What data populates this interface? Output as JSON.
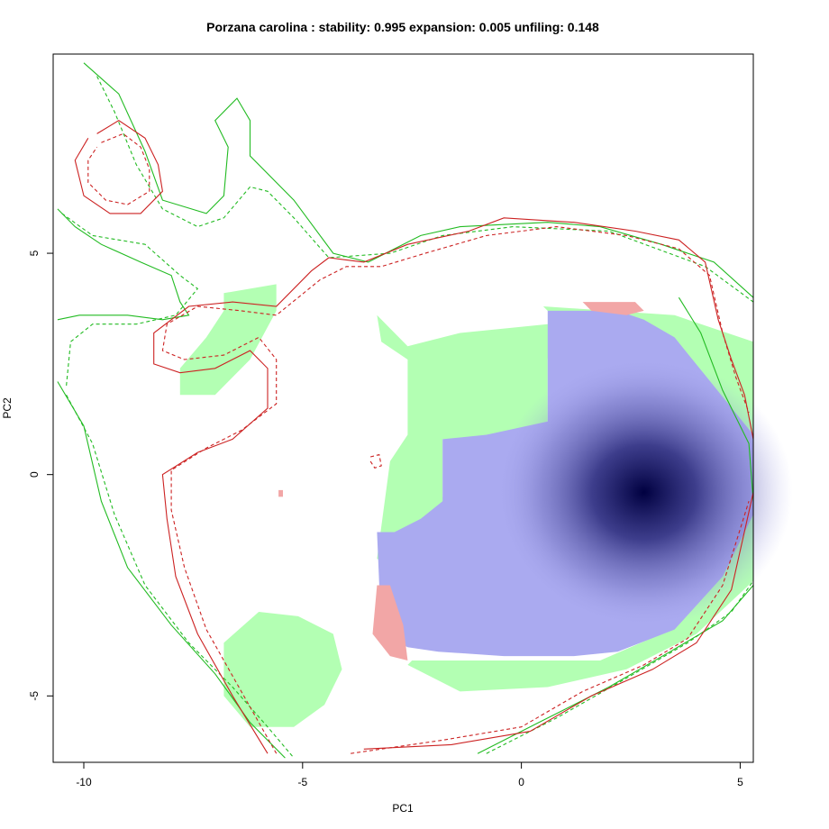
{
  "chart_data": {
    "type": "heatmap",
    "title": "Porzana carolina : stability: 0.995 expansion: 0.005 unfiling: 0.148",
    "xlabel": "PC1",
    "ylabel": "PC2",
    "xlim": [
      -10.7,
      5.3
    ],
    "ylim": [
      -6.5,
      9.5
    ],
    "xticks": [
      -10,
      -5,
      0,
      5
    ],
    "yticks": [
      -5,
      0,
      5
    ],
    "xtick_labels": [
      "-10",
      "-5",
      "0",
      "5"
    ],
    "ytick_labels": [
      "-5",
      "0",
      "5"
    ],
    "colors": {
      "overlap": "#aaaaf0",
      "density_peak": "#000040",
      "native_only": "#b3ffb3",
      "invasive_only": "#f2a6a6",
      "native_contour": "#22bb22",
      "invasive_contour": "#cc2222"
    },
    "density_peak": {
      "x": 2.8,
      "y": -0.4
    },
    "regions": {
      "native_only": [
        [
          [
            0.5,
            3.8
          ],
          [
            3.5,
            3.6
          ],
          [
            5.3,
            3.0
          ],
          [
            5.3,
            0.3
          ],
          [
            4.6,
            1.4
          ],
          [
            3.8,
            2.6
          ],
          [
            2.8,
            3.4
          ],
          [
            1.4,
            3.6
          ],
          [
            0.6,
            3.4
          ],
          [
            -1.4,
            3.2
          ],
          [
            -2.6,
            2.9
          ],
          [
            -3.3,
            3.6
          ],
          [
            -3.2,
            3.0
          ],
          [
            -2.6,
            2.6
          ],
          [
            -2.6,
            0.9
          ],
          [
            -3.0,
            0.3
          ],
          [
            -3.3,
            -1.9
          ],
          [
            -2.4,
            -2.4
          ],
          [
            -1.2,
            -1.6
          ],
          [
            -1.8,
            -0.5
          ],
          [
            -1.8,
            0.8
          ],
          [
            -0.5,
            0.8
          ],
          [
            0.6,
            1.2
          ],
          [
            0.6,
            2.6
          ],
          [
            0.7,
            3.6
          ]
        ],
        [
          [
            -2.6,
            -4.3
          ],
          [
            -1.4,
            -4.9
          ],
          [
            0.6,
            -4.8
          ],
          [
            2.4,
            -4.4
          ],
          [
            4.0,
            -3.6
          ],
          [
            5.3,
            -2.4
          ],
          [
            5.3,
            -0.5
          ],
          [
            4.4,
            -2.2
          ],
          [
            3.2,
            -3.6
          ],
          [
            1.8,
            -4.2
          ],
          [
            -0.4,
            -4.2
          ],
          [
            -2.5,
            -4.2
          ]
        ],
        [
          [
            -6.8,
            4.1
          ],
          [
            -5.6,
            4.3
          ],
          [
            -5.6,
            3.7
          ],
          [
            -6.2,
            2.6
          ],
          [
            -7.0,
            1.8
          ],
          [
            -7.8,
            1.8
          ],
          [
            -7.8,
            2.4
          ],
          [
            -7.2,
            3.1
          ],
          [
            -6.8,
            3.7
          ]
        ],
        [
          [
            -6.0,
            -3.1
          ],
          [
            -5.1,
            -3.2
          ],
          [
            -4.3,
            -3.6
          ],
          [
            -4.1,
            -4.4
          ],
          [
            -4.5,
            -5.2
          ],
          [
            -5.2,
            -5.7
          ],
          [
            -6.2,
            -5.7
          ],
          [
            -6.8,
            -5.0
          ],
          [
            -6.8,
            -3.8
          ]
        ]
      ],
      "overlap": [
        [
          [
            0.6,
            3.7
          ],
          [
            2.2,
            3.7
          ],
          [
            2.8,
            3.5
          ],
          [
            3.5,
            3.1
          ],
          [
            4.4,
            2.0
          ],
          [
            5.3,
            0.9
          ],
          [
            5.3,
            -0.9
          ],
          [
            4.6,
            -2.3
          ],
          [
            3.5,
            -3.5
          ],
          [
            2.2,
            -4.0
          ],
          [
            1.2,
            -4.1
          ],
          [
            -0.4,
            -4.1
          ],
          [
            -1.9,
            -4.0
          ],
          [
            -2.6,
            -3.9
          ],
          [
            -3.2,
            -3.6
          ],
          [
            -3.3,
            -1.3
          ],
          [
            -2.9,
            -1.3
          ],
          [
            -2.3,
            -1.0
          ],
          [
            -1.8,
            -0.6
          ],
          [
            -1.8,
            0.8
          ],
          [
            -0.8,
            0.9
          ],
          [
            0.6,
            1.2
          ],
          [
            0.6,
            2.6
          ]
        ]
      ],
      "invasive_only": [
        [
          [
            1.4,
            3.9
          ],
          [
            2.6,
            3.9
          ],
          [
            2.8,
            3.7
          ],
          [
            2.4,
            3.6
          ],
          [
            1.6,
            3.7
          ]
        ],
        [
          [
            -3.3,
            -2.5
          ],
          [
            -3.0,
            -2.5
          ],
          [
            -2.7,
            -3.4
          ],
          [
            -2.6,
            -4.2
          ],
          [
            -3.0,
            -4.1
          ],
          [
            -3.4,
            -3.6
          ]
        ],
        [
          [
            -5.55,
            -0.5
          ],
          [
            -5.45,
            -0.5
          ],
          [
            -5.45,
            -0.35
          ],
          [
            -5.55,
            -0.35
          ]
        ]
      ]
    },
    "series": [
      {
        "kind": "native",
        "style": "solid",
        "points": [
          [
            -10.6,
            6.0
          ],
          [
            -10.2,
            5.6
          ],
          [
            -9.6,
            5.2
          ],
          [
            -8.7,
            4.8
          ],
          [
            -8.0,
            4.5
          ],
          [
            -7.8,
            3.9
          ],
          [
            -7.6,
            3.6
          ],
          [
            -8.2,
            3.5
          ],
          [
            -9.0,
            3.6
          ],
          [
            -10.1,
            3.6
          ],
          [
            -10.6,
            3.5
          ]
        ]
      },
      {
        "kind": "native",
        "style": "solid",
        "points": [
          [
            -10.0,
            9.3
          ],
          [
            -9.2,
            8.6
          ],
          [
            -8.6,
            7.3
          ],
          [
            -8.2,
            6.2
          ],
          [
            -7.2,
            5.9
          ],
          [
            -6.8,
            6.3
          ],
          [
            -6.7,
            7.4
          ],
          [
            -7.0,
            8.0
          ],
          [
            -6.5,
            8.5
          ],
          [
            -6.2,
            8.0
          ],
          [
            -6.2,
            7.2
          ],
          [
            -5.2,
            6.2
          ],
          [
            -4.3,
            5.0
          ],
          [
            -3.5,
            4.8
          ],
          [
            -2.3,
            5.4
          ],
          [
            -1.4,
            5.6
          ],
          [
            0.6,
            5.7
          ],
          [
            1.8,
            5.6
          ],
          [
            3.2,
            5.2
          ],
          [
            4.4,
            4.8
          ],
          [
            5.3,
            4.0
          ]
        ]
      },
      {
        "kind": "native",
        "style": "solid",
        "points": [
          [
            -10.6,
            2.1
          ],
          [
            -10.0,
            1.1
          ],
          [
            -9.6,
            -0.6
          ],
          [
            -9.0,
            -2.1
          ],
          [
            -8.0,
            -3.4
          ],
          [
            -7.0,
            -4.5
          ],
          [
            -6.2,
            -5.6
          ],
          [
            -5.4,
            -6.4
          ]
        ]
      },
      {
        "kind": "native",
        "style": "solid",
        "points": [
          [
            -1.0,
            -6.3
          ],
          [
            0.4,
            -5.6
          ],
          [
            2.0,
            -4.8
          ],
          [
            3.4,
            -4.0
          ],
          [
            4.6,
            -3.3
          ],
          [
            5.3,
            -2.5
          ]
        ]
      },
      {
        "kind": "native",
        "style": "solid",
        "points": [
          [
            3.6,
            4.0
          ],
          [
            4.1,
            3.2
          ],
          [
            4.6,
            1.9
          ],
          [
            5.2,
            0.7
          ],
          [
            5.3,
            -0.6
          ]
        ]
      },
      {
        "kind": "native",
        "style": "dashed",
        "points": [
          [
            -10.5,
            5.9
          ],
          [
            -9.8,
            5.4
          ],
          [
            -8.6,
            5.2
          ],
          [
            -7.8,
            4.5
          ],
          [
            -7.4,
            4.2
          ],
          [
            -7.9,
            3.6
          ],
          [
            -8.8,
            3.4
          ],
          [
            -9.8,
            3.4
          ],
          [
            -10.3,
            3.0
          ],
          [
            -10.4,
            2.0
          ]
        ]
      },
      {
        "kind": "native",
        "style": "dashed",
        "points": [
          [
            -9.7,
            9.0
          ],
          [
            -9.3,
            8.2
          ],
          [
            -8.8,
            7.0
          ],
          [
            -8.2,
            6.0
          ],
          [
            -7.4,
            5.6
          ],
          [
            -6.8,
            5.8
          ],
          [
            -6.2,
            6.5
          ],
          [
            -5.8,
            6.4
          ],
          [
            -5.2,
            5.8
          ],
          [
            -4.4,
            4.9
          ],
          [
            -3.0,
            5.0
          ],
          [
            -1.8,
            5.4
          ],
          [
            -0.2,
            5.6
          ],
          [
            2.0,
            5.5
          ],
          [
            4.2,
            4.7
          ],
          [
            5.3,
            3.9
          ]
        ]
      },
      {
        "kind": "native",
        "style": "dashed",
        "points": [
          [
            -10.4,
            1.8
          ],
          [
            -9.8,
            0.7
          ],
          [
            -9.3,
            -0.9
          ],
          [
            -8.6,
            -2.5
          ],
          [
            -7.6,
            -3.8
          ],
          [
            -6.6,
            -4.8
          ],
          [
            -5.8,
            -5.7
          ],
          [
            -5.2,
            -6.4
          ]
        ]
      },
      {
        "kind": "native",
        "style": "dashed",
        "points": [
          [
            -0.8,
            -6.3
          ],
          [
            0.8,
            -5.5
          ],
          [
            2.4,
            -4.6
          ],
          [
            3.8,
            -3.8
          ],
          [
            4.8,
            -3.1
          ],
          [
            5.3,
            -2.4
          ]
        ]
      },
      {
        "kind": "invasive",
        "style": "solid",
        "points": [
          [
            -9.7,
            7.7
          ],
          [
            -9.2,
            8.0
          ],
          [
            -8.6,
            7.6
          ],
          [
            -8.3,
            7.0
          ],
          [
            -8.2,
            6.4
          ],
          [
            -8.7,
            5.9
          ],
          [
            -9.4,
            5.9
          ],
          [
            -10.0,
            6.3
          ],
          [
            -10.2,
            7.1
          ],
          [
            -9.9,
            7.6
          ]
        ]
      },
      {
        "kind": "invasive",
        "style": "dashed",
        "points": [
          [
            -9.6,
            7.5
          ],
          [
            -9.1,
            7.7
          ],
          [
            -8.7,
            7.4
          ],
          [
            -8.5,
            6.9
          ],
          [
            -8.5,
            6.4
          ],
          [
            -9.0,
            6.1
          ],
          [
            -9.5,
            6.2
          ],
          [
            -9.9,
            6.6
          ],
          [
            -9.9,
            7.1
          ],
          [
            -9.7,
            7.4
          ]
        ]
      },
      {
        "kind": "invasive",
        "style": "solid",
        "points": [
          [
            -5.8,
            -6.3
          ],
          [
            -6.6,
            -5.0
          ],
          [
            -7.4,
            -3.6
          ],
          [
            -7.9,
            -2.3
          ],
          [
            -8.1,
            -1.0
          ],
          [
            -8.2,
            0.0
          ],
          [
            -7.4,
            0.5
          ],
          [
            -6.6,
            0.8
          ],
          [
            -5.8,
            1.5
          ],
          [
            -5.8,
            2.4
          ],
          [
            -6.2,
            2.8
          ],
          [
            -7.0,
            2.4
          ],
          [
            -7.8,
            2.3
          ],
          [
            -8.4,
            2.5
          ],
          [
            -8.4,
            3.2
          ],
          [
            -7.6,
            3.8
          ],
          [
            -6.6,
            3.9
          ],
          [
            -5.6,
            3.8
          ],
          [
            -4.8,
            4.6
          ],
          [
            -4.4,
            4.9
          ],
          [
            -3.6,
            4.8
          ],
          [
            -2.6,
            5.2
          ],
          [
            -1.2,
            5.5
          ],
          [
            -0.4,
            5.8
          ],
          [
            1.2,
            5.7
          ],
          [
            2.6,
            5.5
          ],
          [
            3.6,
            5.3
          ],
          [
            4.2,
            4.8
          ],
          [
            4.5,
            3.5
          ],
          [
            4.8,
            2.6
          ],
          [
            5.1,
            1.8
          ],
          [
            5.3,
            0.8
          ]
        ]
      },
      {
        "kind": "invasive",
        "style": "dashed",
        "points": [
          [
            -5.6,
            -6.3
          ],
          [
            -6.4,
            -4.9
          ],
          [
            -7.2,
            -3.5
          ],
          [
            -7.7,
            -2.1
          ],
          [
            -8.0,
            -0.8
          ],
          [
            -8.0,
            0.1
          ],
          [
            -7.2,
            0.6
          ],
          [
            -6.4,
            1.0
          ],
          [
            -5.6,
            1.6
          ],
          [
            -5.6,
            2.6
          ],
          [
            -6.0,
            3.1
          ],
          [
            -6.8,
            2.7
          ],
          [
            -7.7,
            2.6
          ],
          [
            -8.2,
            2.8
          ],
          [
            -8.1,
            3.4
          ],
          [
            -7.4,
            3.8
          ],
          [
            -6.4,
            3.7
          ],
          [
            -5.6,
            3.6
          ],
          [
            -4.6,
            4.4
          ],
          [
            -4.0,
            4.7
          ],
          [
            -3.2,
            4.7
          ],
          [
            -2.2,
            5.0
          ],
          [
            -0.8,
            5.4
          ],
          [
            0.8,
            5.6
          ],
          [
            2.4,
            5.4
          ],
          [
            3.6,
            5.1
          ],
          [
            4.3,
            4.5
          ],
          [
            4.6,
            3.2
          ],
          [
            4.9,
            2.2
          ],
          [
            5.2,
            1.4
          ]
        ]
      },
      {
        "kind": "invasive",
        "style": "solid",
        "points": [
          [
            -3.6,
            -6.2
          ],
          [
            -1.6,
            -6.1
          ],
          [
            0.2,
            -5.8
          ],
          [
            1.6,
            -5.0
          ],
          [
            3.0,
            -4.4
          ],
          [
            4.0,
            -3.8
          ],
          [
            4.8,
            -2.6
          ],
          [
            5.3,
            -0.4
          ]
        ]
      },
      {
        "kind": "invasive",
        "style": "dashed",
        "points": [
          [
            -3.9,
            -6.3
          ],
          [
            -1.8,
            -6.0
          ],
          [
            0.0,
            -5.7
          ],
          [
            1.4,
            -4.9
          ],
          [
            2.8,
            -4.3
          ],
          [
            3.8,
            -3.7
          ],
          [
            4.6,
            -2.5
          ],
          [
            5.2,
            -0.6
          ]
        ]
      },
      {
        "kind": "invasive",
        "style": "dashed",
        "points": [
          [
            -3.45,
            0.4
          ],
          [
            -3.25,
            0.45
          ],
          [
            -3.2,
            0.2
          ],
          [
            -3.35,
            0.15
          ],
          [
            -3.45,
            0.3
          ]
        ]
      }
    ]
  }
}
